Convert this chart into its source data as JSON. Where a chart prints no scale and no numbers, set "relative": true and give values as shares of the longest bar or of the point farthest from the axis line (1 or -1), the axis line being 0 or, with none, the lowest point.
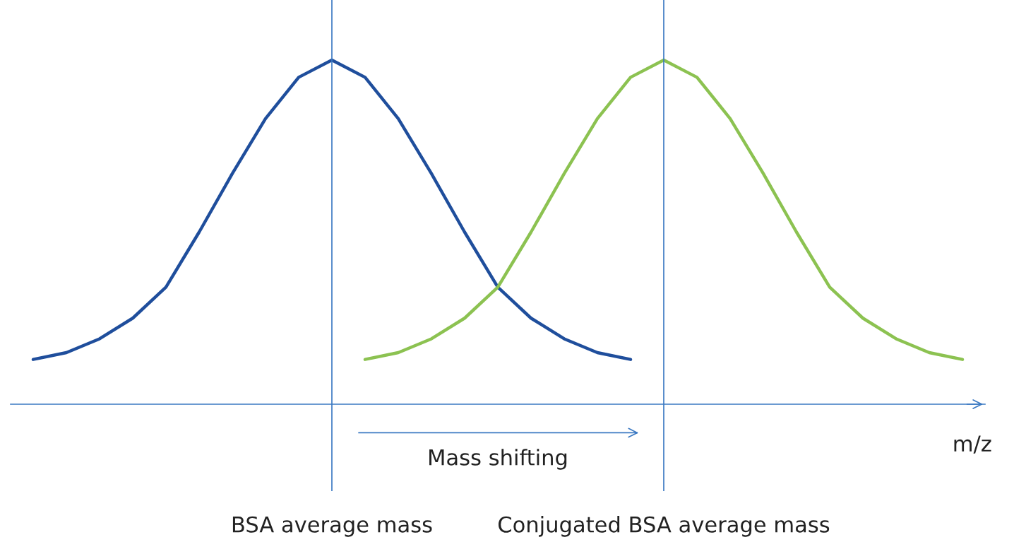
{
  "chart_data": {
    "type": "line",
    "relative": true,
    "xlabel": "m/z",
    "categories": [
      null,
      null,
      null,
      null,
      null,
      null,
      null,
      null,
      null,
      null,
      null,
      null,
      null,
      null,
      null,
      null,
      null,
      null,
      null,
      null,
      null,
      null,
      null,
      null,
      null,
      null,
      null,
      null,
      null
    ],
    "series": [
      {
        "color": "#1f4e9c",
        "values": [
          0.13,
          0.15,
          0.19,
          0.25,
          0.34,
          0.5,
          0.67,
          0.83,
          0.95,
          1,
          0.95,
          0.83,
          0.67,
          0.5,
          0.34,
          0.25,
          0.19,
          0.15,
          0.13,
          null,
          null,
          null,
          null,
          null,
          null,
          null,
          null,
          null,
          null
        ]
      },
      {
        "color": "#8cc251",
        "values": [
          null,
          null,
          null,
          null,
          null,
          null,
          null,
          null,
          null,
          null,
          0.13,
          0.15,
          0.19,
          0.25,
          0.34,
          0.5,
          0.67,
          0.83,
          0.95,
          1,
          0.95,
          0.83,
          0.67,
          0.5,
          0.34,
          0.25,
          0.19,
          0.15,
          0.13
        ]
      }
    ],
    "annotations": [
      "Mass shifting",
      "BSA average mass",
      "Conjugated BSA average mass"
    ],
    "grid": false,
    "marker": "none",
    "line_style": "solid"
  }
}
